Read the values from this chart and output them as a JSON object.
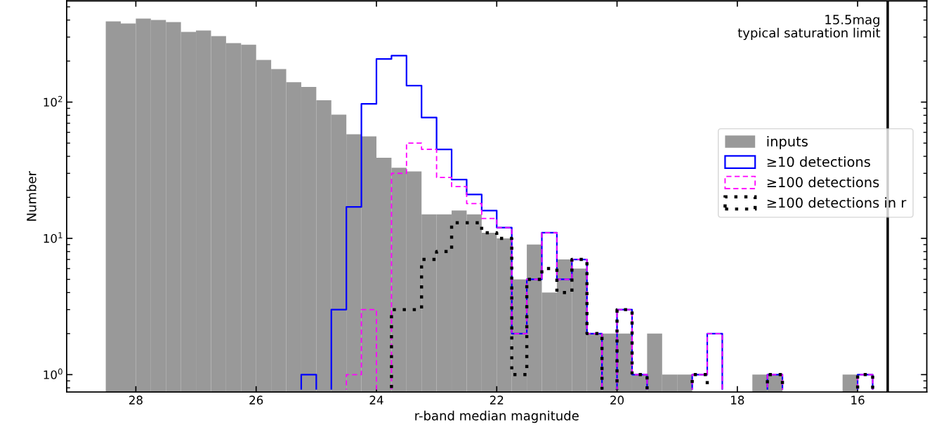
{
  "chart_data": {
    "type": "histogram",
    "xlabel": "r-band median magnitude",
    "ylabel": "Number",
    "bins": [
      28.5,
      28.25,
      28.0,
      27.75,
      27.5,
      27.25,
      27.0,
      26.75,
      26.5,
      26.25,
      26.0,
      25.75,
      25.5,
      25.25,
      25.0,
      24.75,
      24.5,
      24.25,
      24.0,
      23.75,
      23.5,
      23.25,
      23.0,
      22.75,
      22.5,
      22.25,
      22.0,
      21.75,
      21.5,
      21.25,
      21.0,
      20.75,
      20.5,
      20.25,
      20.0,
      19.75,
      19.5,
      19.25,
      19.0,
      18.75,
      18.5,
      18.25,
      18.0,
      17.75,
      17.5,
      17.25,
      17.0,
      16.75,
      16.5,
      16.25,
      16.0,
      15.75,
      15.5
    ],
    "series": [
      {
        "name": "inputs",
        "type": "histogram",
        "color": "#999999",
        "values": [
          391,
          377,
          410,
          400,
          386,
          327,
          335,
          305,
          271,
          264,
          204,
          175,
          140,
          129,
          103,
          81,
          58,
          56,
          39,
          33,
          31,
          15,
          15,
          16,
          15,
          11,
          10,
          5,
          9,
          4,
          7,
          6,
          2,
          2,
          2,
          1,
          2,
          1,
          1,
          null,
          null,
          null,
          null,
          1,
          1,
          null,
          null,
          null,
          null,
          1,
          null,
          null
        ]
      },
      {
        "name": "≥10 detections",
        "type": "histogram",
        "color": "#0000ff",
        "line_style": "solid",
        "values": [
          null,
          null,
          null,
          null,
          null,
          null,
          null,
          null,
          null,
          null,
          null,
          null,
          null,
          1,
          null,
          3,
          17,
          97,
          207,
          219,
          132,
          77,
          45,
          27,
          21,
          16,
          12,
          2,
          5,
          11,
          5,
          7,
          2,
          null,
          3,
          1,
          null,
          null,
          null,
          1,
          2,
          null,
          null,
          null,
          1,
          null,
          null,
          null,
          null,
          null,
          1,
          null
        ]
      },
      {
        "name": "≥100 detections",
        "type": "histogram",
        "color": "#ff00ff",
        "line_style": "dashed",
        "values": [
          null,
          null,
          null,
          null,
          null,
          null,
          null,
          null,
          null,
          null,
          null,
          null,
          null,
          null,
          null,
          null,
          1,
          3,
          null,
          30,
          50,
          45,
          28,
          24,
          18,
          14,
          12,
          2,
          5,
          11,
          5,
          7,
          2,
          null,
          3,
          1,
          null,
          null,
          null,
          1,
          2,
          null,
          null,
          null,
          1,
          null,
          null,
          null,
          null,
          null,
          1,
          null
        ]
      },
      {
        "name": "≥100 detections in r",
        "type": "histogram",
        "color": "#000000",
        "line_style": "dotted",
        "values": [
          null,
          null,
          null,
          null,
          null,
          null,
          null,
          null,
          null,
          null,
          null,
          null,
          null,
          null,
          null,
          null,
          null,
          null,
          null,
          3,
          3,
          7,
          8,
          13,
          13,
          11,
          10,
          1,
          5,
          6,
          4,
          7,
          2,
          null,
          3,
          1,
          null,
          null,
          null,
          1,
          null,
          null,
          null,
          null,
          1,
          null,
          null,
          null,
          null,
          null,
          1,
          null
        ]
      }
    ],
    "log": "y",
    "xlim": [
      29.15,
      14.85
    ],
    "xticks": [
      28,
      26,
      24,
      22,
      20,
      18,
      16
    ],
    "ylim": [
      0.745,
      553
    ],
    "yticks": [
      {
        "value": 1,
        "label": "10$^{0}$"
      },
      {
        "value": 10,
        "label": "10$^{1}$"
      },
      {
        "value": 100,
        "label": "10$^{2}$"
      }
    ],
    "ref_lines": [
      {
        "axis": "x",
        "value": 15.5,
        "label": "15.5mag\ntypical saturation limit",
        "color": "#000000",
        "line_style": "solid"
      }
    ],
    "legend": "right",
    "grid": false
  }
}
